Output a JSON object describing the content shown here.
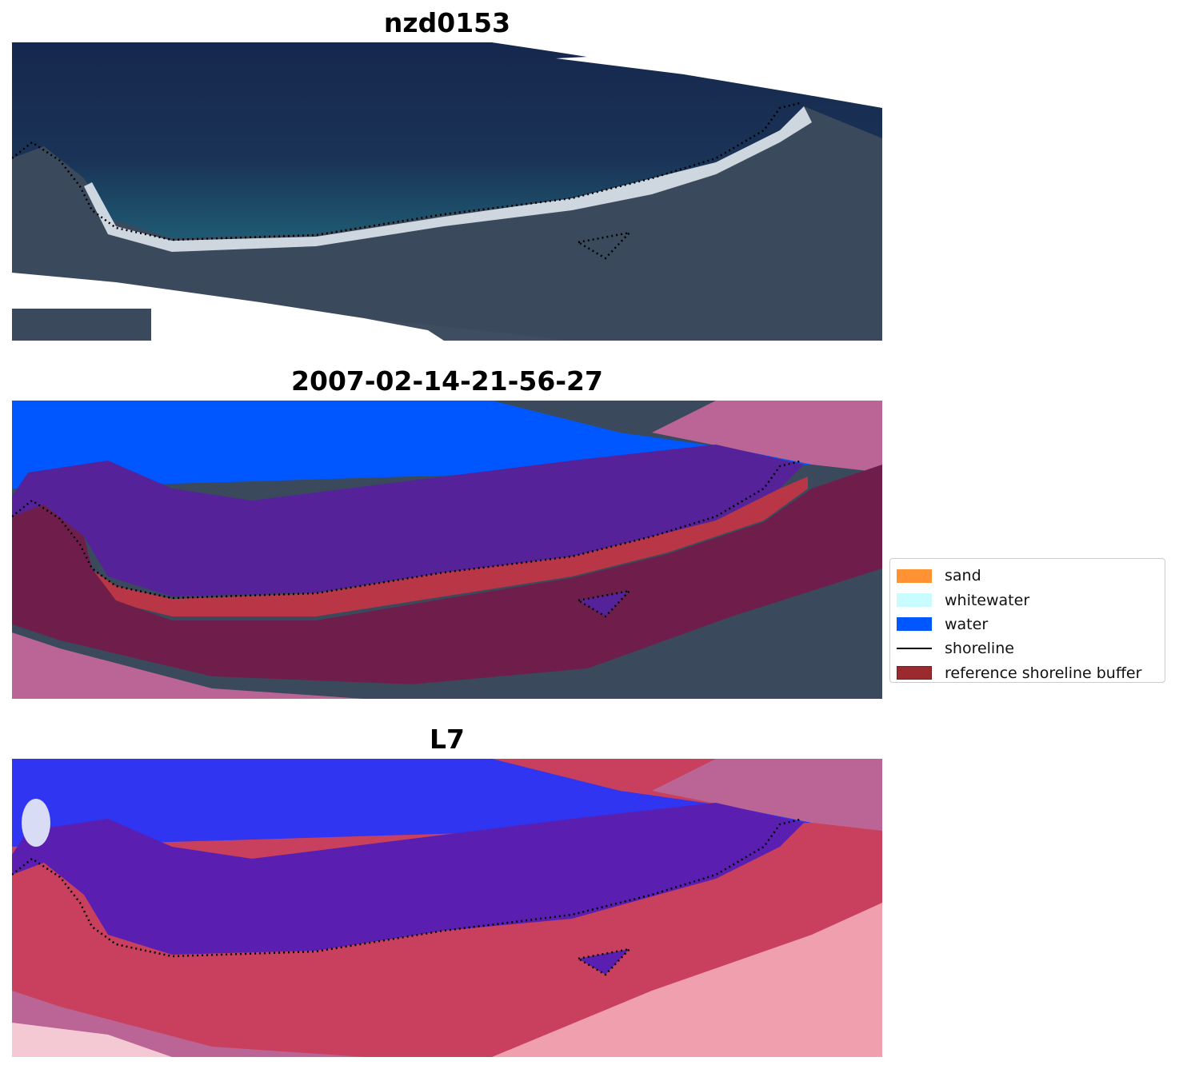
{
  "panels": [
    {
      "title": "nzd0153",
      "kind": "rgb"
    },
    {
      "title": "2007-02-14-21-56-27",
      "kind": "classified"
    },
    {
      "title": "L7",
      "kind": "index"
    }
  ],
  "legend": {
    "items": [
      {
        "label": "sand",
        "color": "#ff9233"
      },
      {
        "label": "whitewater",
        "color": "#c8fcff"
      },
      {
        "label": "water",
        "color": "#0057ff"
      },
      {
        "label": "shoreline",
        "color": "#000000"
      },
      {
        "label": "reference shoreline buffer",
        "color": "#9b2a2f"
      }
    ]
  },
  "colors": {
    "ocean_dark": "#17294f",
    "land": "#3b4a5c",
    "beach": "#e8eef2",
    "water_class": "#0057ff",
    "buffer_purple": "#55229a",
    "buffer_maroon": "#6f1e4b",
    "buffer_pink": "#bb6596",
    "sand_red": "#b83646",
    "index_blue": "#2f35f0",
    "index_red": "#c8405e",
    "index_light": "#ef9fae"
  }
}
